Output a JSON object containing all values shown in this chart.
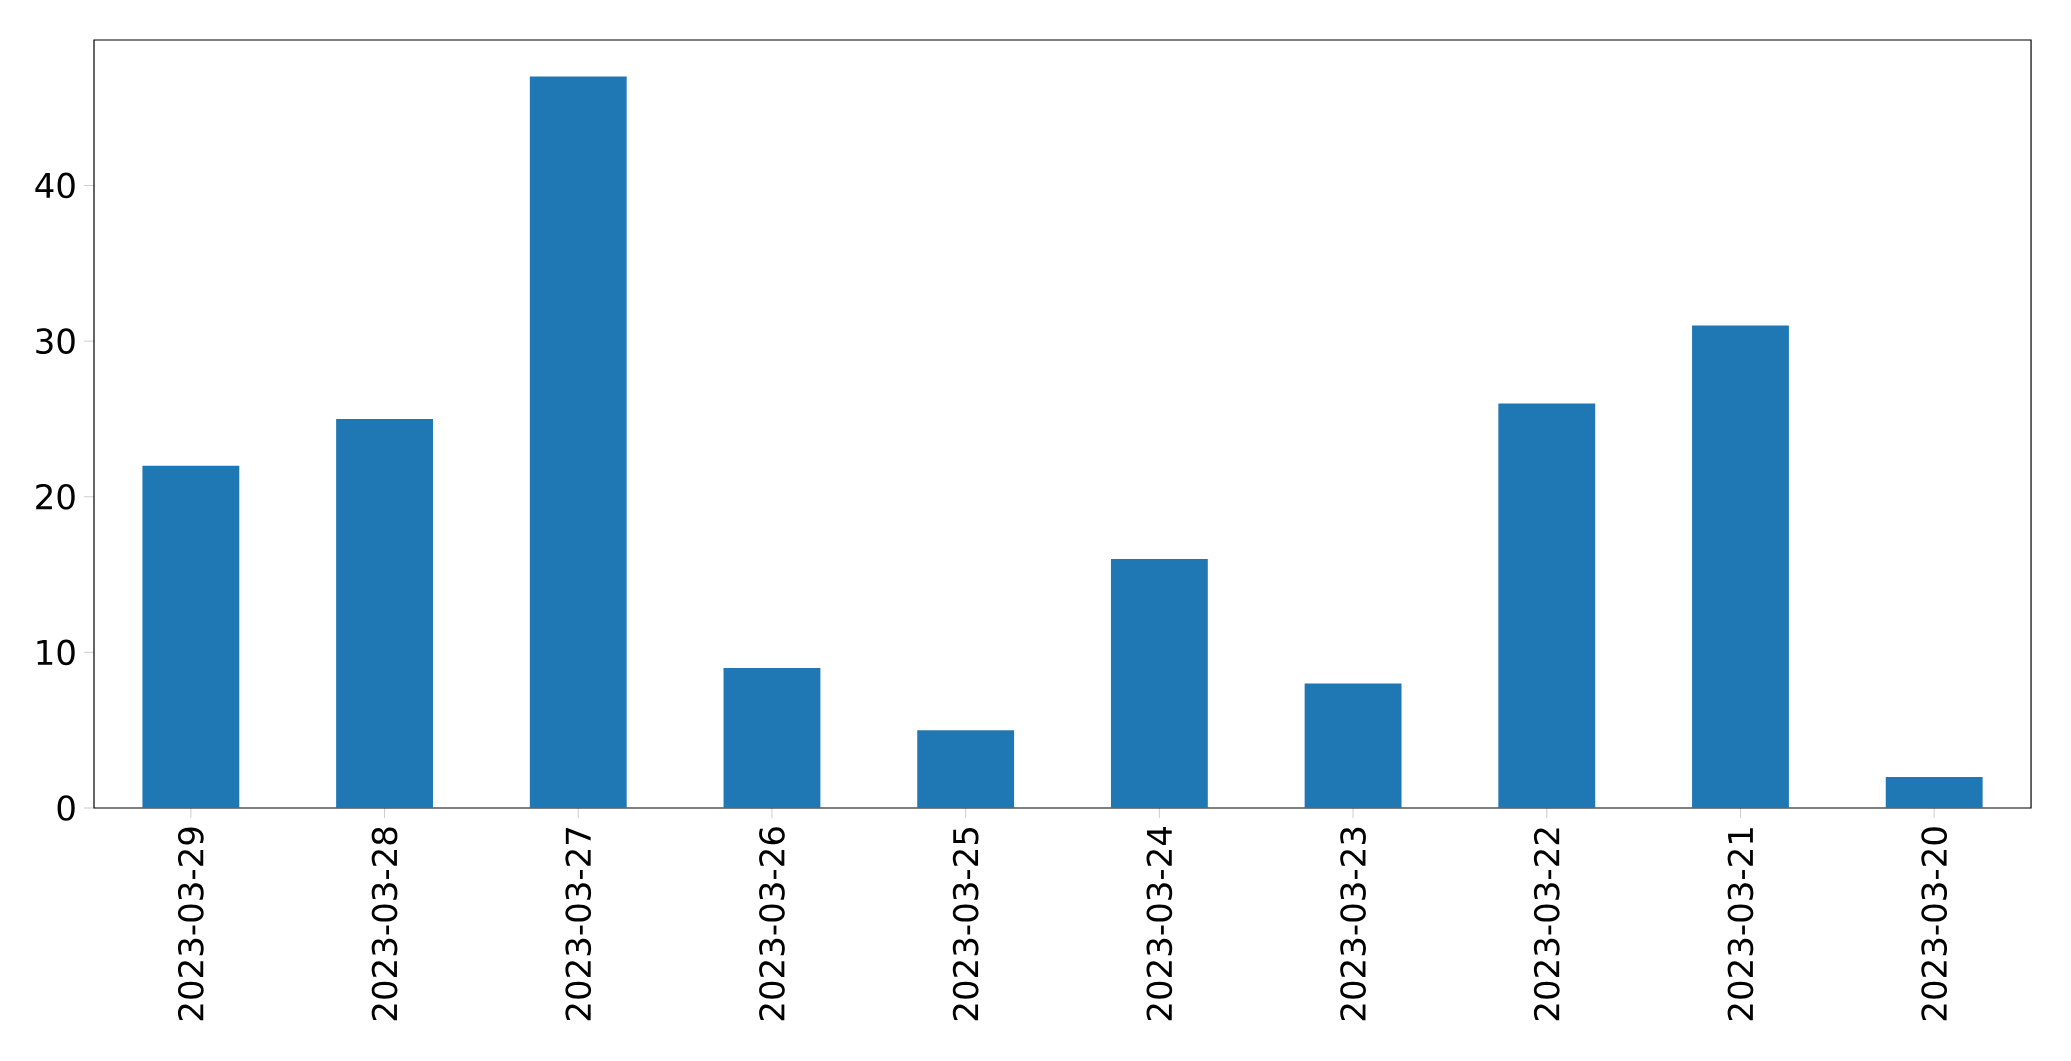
{
  "chart_data": {
    "type": "bar",
    "categories": [
      "2023-03-29",
      "2023-03-28",
      "2023-03-27",
      "2023-03-26",
      "2023-03-25",
      "2023-03-24",
      "2023-03-23",
      "2023-03-22",
      "2023-03-21",
      "2023-03-20"
    ],
    "values": [
      22,
      25,
      47,
      9,
      5,
      16,
      8,
      26,
      31,
      2
    ],
    "color": "#1f77b4",
    "ylim": [
      0,
      49.35
    ],
    "yticks": [
      0,
      10,
      20,
      30,
      40
    ]
  }
}
